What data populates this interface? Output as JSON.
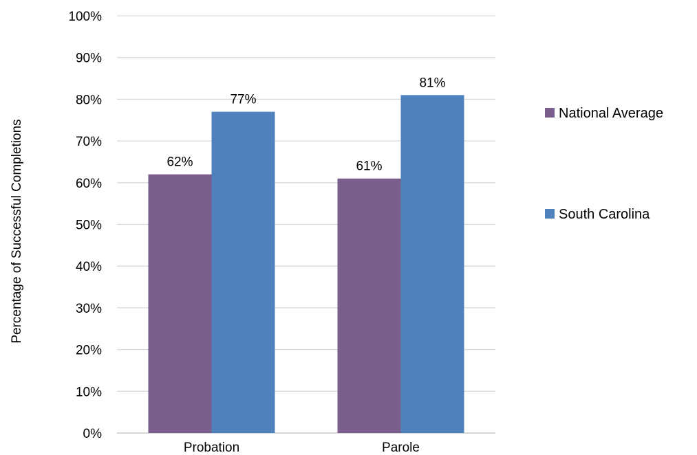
{
  "chart_data": {
    "type": "bar",
    "categories": [
      "Probation",
      "Parole"
    ],
    "series": [
      {
        "name": "National Average",
        "values": [
          62,
          61
        ],
        "labels": [
          "62%",
          "61%"
        ],
        "color": "#7a5f8c"
      },
      {
        "name": "South Carolina",
        "values": [
          77,
          81
        ],
        "labels": [
          "77%",
          "81%"
        ],
        "color": "#4f81bd"
      }
    ],
    "ylabel": "Percentage of Successful Completions",
    "xlabel": "",
    "ylim": [
      0,
      100
    ],
    "y_ticks": [
      "0%",
      "10%",
      "20%",
      "30%",
      "40%",
      "50%",
      "60%",
      "70%",
      "80%",
      "90%",
      "100%"
    ],
    "grid": true,
    "legend_position": "right"
  }
}
